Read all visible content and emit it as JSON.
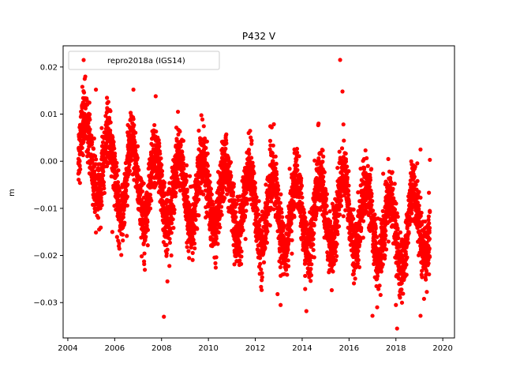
{
  "chart_data": {
    "type": "scatter",
    "title": "P432 V",
    "xlabel": "",
    "ylabel": "m",
    "xlim": [
      2003.8,
      2020.5
    ],
    "ylim": [
      -0.0375,
      0.0245
    ],
    "x_ticks": [
      2004,
      2006,
      2008,
      2010,
      2012,
      2014,
      2016,
      2018,
      2020
    ],
    "x_tick_labels": [
      "2004",
      "2006",
      "2008",
      "2010",
      "2012",
      "2014",
      "2016",
      "2018",
      "2020"
    ],
    "y_ticks": [
      0.02,
      0.01,
      0.0,
      -0.01,
      -0.02,
      -0.03
    ],
    "y_tick_labels": [
      "0.02",
      "0.01",
      "0.00",
      "−0.01",
      "−0.02",
      "−0.03"
    ],
    "grid": false,
    "legend_position": "top-left",
    "marker_color": "#ff0000",
    "series": [
      {
        "name": "repro2018a (IGS14)",
        "trend_points": [
          {
            "x": 2004.5,
            "y": 0.003
          },
          {
            "x": 2006.0,
            "y": -0.003
          },
          {
            "x": 2008.0,
            "y": -0.006
          },
          {
            "x": 2010.0,
            "y": -0.007
          },
          {
            "x": 2012.0,
            "y": -0.01
          },
          {
            "x": 2014.0,
            "y": -0.012
          },
          {
            "x": 2016.0,
            "y": -0.01
          },
          {
            "x": 2018.0,
            "y": -0.016
          },
          {
            "x": 2019.4,
            "y": -0.012
          }
        ],
        "x_range": [
          2004.45,
          2019.45
        ],
        "seasonal_amplitude": 0.0075,
        "noise": 0.0032,
        "outliers": [
          {
            "x": 2015.62,
            "y": 0.0215
          },
          {
            "x": 2015.72,
            "y": 0.0148
          },
          {
            "x": 2004.62,
            "y": 0.0158
          },
          {
            "x": 2005.2,
            "y": 0.0152
          },
          {
            "x": 2006.8,
            "y": 0.0152
          },
          {
            "x": 2007.75,
            "y": 0.0138
          },
          {
            "x": 2008.1,
            "y": -0.033
          },
          {
            "x": 2008.25,
            "y": -0.0255
          },
          {
            "x": 2013.08,
            "y": -0.0305
          },
          {
            "x": 2014.18,
            "y": -0.0318
          },
          {
            "x": 2012.95,
            "y": -0.0282
          },
          {
            "x": 2017.0,
            "y": -0.0328
          },
          {
            "x": 2017.2,
            "y": -0.031
          },
          {
            "x": 2018.05,
            "y": -0.0355
          },
          {
            "x": 2019.05,
            "y": -0.0328
          },
          {
            "x": 2019.2,
            "y": -0.0292
          },
          {
            "x": 2018.0,
            "y": -0.0305
          },
          {
            "x": 2005.3,
            "y": -0.012
          },
          {
            "x": 2005.9,
            "y": -0.015
          },
          {
            "x": 2019.45,
            "y": 0.0003
          },
          {
            "x": 2019.05,
            "y": 0.0025
          },
          {
            "x": 2008.7,
            "y": 0.0105
          },
          {
            "x": 2014.7,
            "y": 0.008
          },
          {
            "x": 2012.7,
            "y": 0.0072
          }
        ]
      }
    ]
  }
}
